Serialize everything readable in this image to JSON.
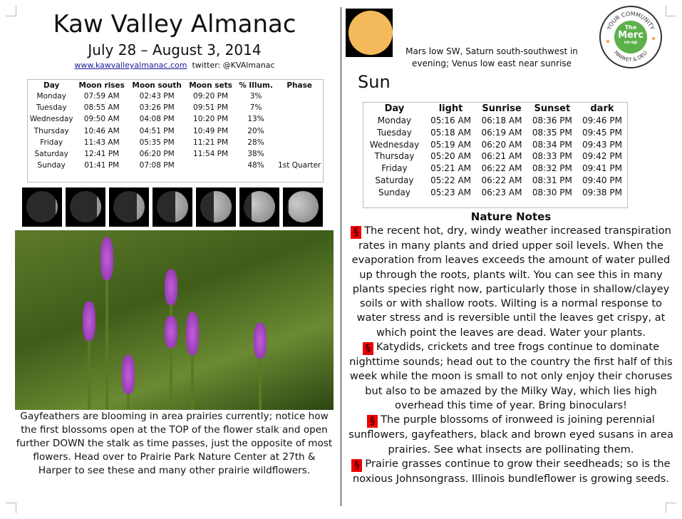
{
  "header": {
    "title": "Kaw Valley Almanac",
    "dates": "July 28 – August 3, 2014",
    "url": "www.kawvalleyalmanac.com",
    "twitter": "twitter: @KVAlmanac"
  },
  "moon_table": {
    "headers": [
      "Day",
      "Moon rises",
      "Moon south",
      "Moon sets",
      "% Illum.",
      "Phase"
    ],
    "rows": [
      [
        "Monday",
        "07:59 AM",
        "02:43 PM",
        "09:20 PM",
        "3%",
        ""
      ],
      [
        "Tuesday",
        "08:55 AM",
        "03:26 PM",
        "09:51 PM",
        "7%",
        ""
      ],
      [
        "Wednesday",
        "09:50 AM",
        "04:08 PM",
        "10:20 PM",
        "13%",
        ""
      ],
      [
        "Thursday",
        "10:46 AM",
        "04:51 PM",
        "10:49 PM",
        "20%",
        ""
      ],
      [
        "Friday",
        "11:43 AM",
        "05:35 PM",
        "11:21 PM",
        "28%",
        ""
      ],
      [
        "Saturday",
        "12:41 PM",
        "06:20 PM",
        "11:54 PM",
        "38%",
        ""
      ],
      [
        "Sunday",
        "01:41 PM",
        "07:08 PM",
        "",
        "48%",
        "1st Quarter"
      ]
    ]
  },
  "moon_phase_images": [
    0.03,
    0.07,
    0.13,
    0.2,
    0.28,
    0.38,
    0.48
  ],
  "photo_caption": "Gayfeathers are blooming in area prairies currently; notice how the first blossoms open at the TOP of the flower stalk and open further DOWN the stalk as time passes, just the opposite of most flowers. Head over to Prairie Park Nature Center at 27th & Harper to see these and many other prairie wildflowers.",
  "planets": "Mars low SW, Saturn south-southwest in evening; Venus low east near sunrise",
  "logo": {
    "ring_top": "YOUR COMMUNITY",
    "ring_bottom": "MARKET & DELI",
    "the": "The",
    "merc": "Merc",
    "coop": "co-op"
  },
  "sun": {
    "heading": "Sun",
    "headers": [
      "Day",
      "light",
      "Sunrise",
      "Sunset",
      "dark"
    ],
    "rows": [
      [
        "Monday",
        "05:16 AM",
        "06:18 AM",
        "08:36 PM",
        "09:46 PM"
      ],
      [
        "Tuesday",
        "05:18 AM",
        "06:19 AM",
        "08:35 PM",
        "09:45 PM"
      ],
      [
        "Wednesday",
        "05:19 AM",
        "06:20 AM",
        "08:34 PM",
        "09:43 PM"
      ],
      [
        "Thursday",
        "05:20 AM",
        "06:21 AM",
        "08:33 PM",
        "09:42 PM"
      ],
      [
        "Friday",
        "05:21 AM",
        "06:22 AM",
        "08:32 PM",
        "09:41 PM"
      ],
      [
        "Saturday",
        "05:22 AM",
        "06:22 AM",
        "08:31 PM",
        "09:40 PM"
      ],
      [
        "Sunday",
        "05:23 AM",
        "06:23 AM",
        "08:30 PM",
        "09:38 PM"
      ]
    ]
  },
  "nature_notes": {
    "heading": "Nature Notes",
    "bullet": "§",
    "items": [
      "The recent hot, dry, windy weather increased transpiration rates in many plants and dried upper soil levels. When the evaporation from leaves exceeds the amount of water pulled up through the roots, plants wilt. You can see this in many plants species right now, particularly those in shallow/clayey soils or with shallow roots. Wilting is a normal response to water stress and is reversible until the leaves get crispy, at which point the leaves are dead. Water your plants.",
      "Katydids, crickets and tree frogs continue to dominate nighttime sounds; head out to the country the first half of this week while the moon is small to not only enjoy their choruses but also to be amazed by the Milky Way, which lies high overhead this time of year. Bring binoculars!",
      "The purple blossoms of ironweed is joining perennial sunflowers, gayfeathers, black and brown eyed susans in area prairies. See what insects are pollinating them.",
      "Prairie grasses continue to grow their seedheads; so is the noxious Johnsongrass. Illinois bundleflower is growing seeds."
    ]
  }
}
